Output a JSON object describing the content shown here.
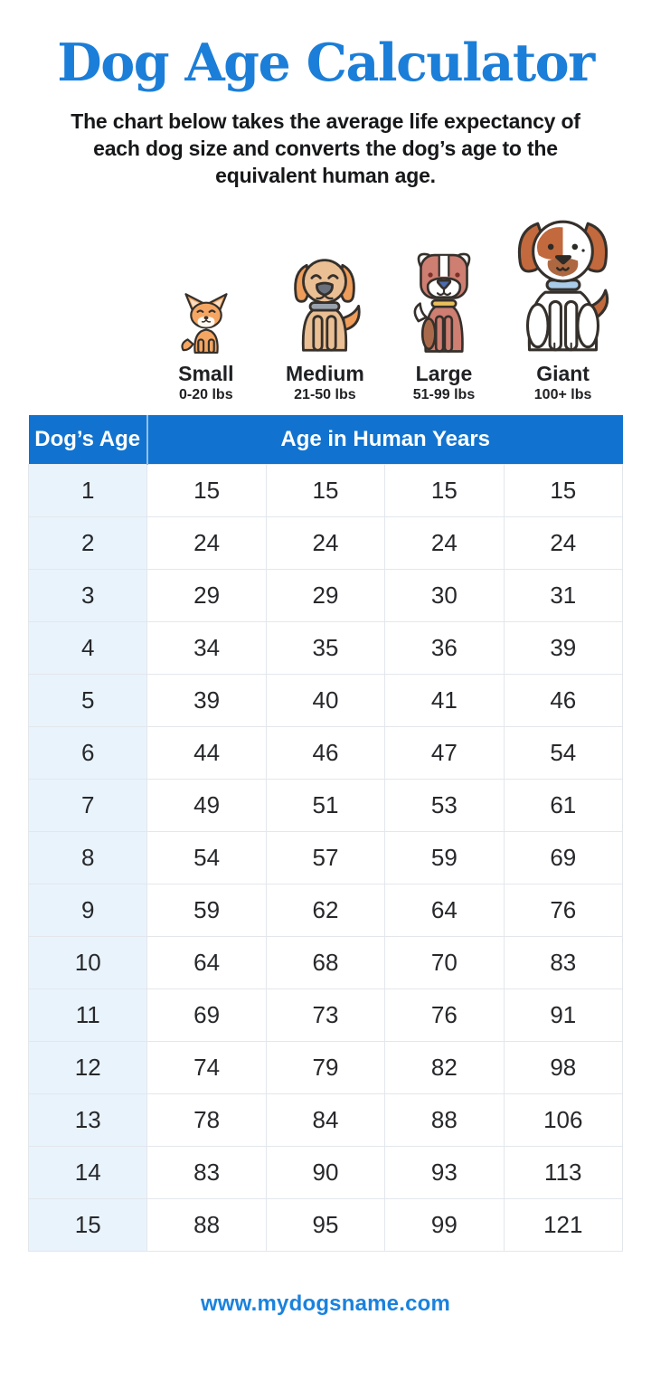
{
  "page": {
    "title": "Dog Age Calculator",
    "subtitle_lines": [
      "The chart below takes the average life expectancy of",
      "each dog size and converts the dog’s age to the",
      "equivalent human age."
    ],
    "footer_url": "www.mydogsname.com"
  },
  "colors": {
    "title_blue": "#1b7ed8",
    "table_header_blue": "#1173cf",
    "age_column_bg": "#e9f3fc",
    "link_blue": "#1a82dd"
  },
  "size_categories": [
    {
      "name": "Small",
      "weight_range": "0-20 lbs",
      "icon": "chihuahua-icon"
    },
    {
      "name": "Medium",
      "weight_range": "21-50 lbs",
      "icon": "golden-retriever-icon"
    },
    {
      "name": "Large",
      "weight_range": "51-99 lbs",
      "icon": "boxer-icon"
    },
    {
      "name": "Giant",
      "weight_range": "100+ lbs",
      "icon": "saint-bernard-icon"
    }
  ],
  "table": {
    "row_header": "Dog’s Age",
    "span_header": "Age in Human Years"
  },
  "chart_data": {
    "type": "table",
    "title": "Dog Age Calculator",
    "subtitle": "The chart below takes the average life expectancy of each dog size and converts the dog’s age to the equivalent human age.",
    "columns": [
      "Dog's Age",
      "Small 0-20 lbs",
      "Medium 21-50 lbs",
      "Large 51-99 lbs",
      "Giant 100+ lbs"
    ],
    "rows": [
      [
        1,
        15,
        15,
        15,
        15
      ],
      [
        2,
        24,
        24,
        24,
        24
      ],
      [
        3,
        29,
        29,
        30,
        31
      ],
      [
        4,
        34,
        35,
        36,
        39
      ],
      [
        5,
        39,
        40,
        41,
        46
      ],
      [
        6,
        44,
        46,
        47,
        54
      ],
      [
        7,
        49,
        51,
        53,
        61
      ],
      [
        8,
        54,
        57,
        59,
        69
      ],
      [
        9,
        59,
        62,
        64,
        76
      ],
      [
        10,
        64,
        68,
        70,
        83
      ],
      [
        11,
        69,
        73,
        76,
        91
      ],
      [
        12,
        74,
        79,
        82,
        98
      ],
      [
        13,
        78,
        84,
        88,
        106
      ],
      [
        14,
        83,
        90,
        93,
        113
      ],
      [
        15,
        88,
        95,
        99,
        121
      ]
    ]
  }
}
